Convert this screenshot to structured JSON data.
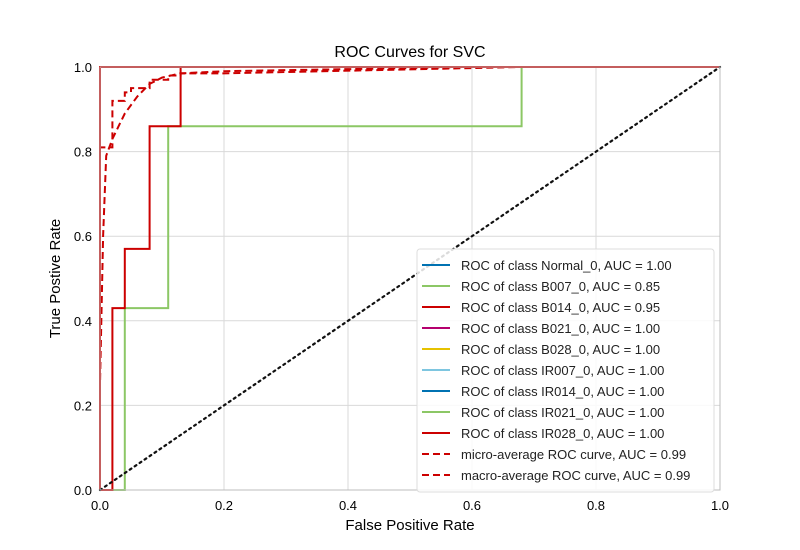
{
  "chart_data": {
    "type": "line",
    "title": "ROC Curves for SVC",
    "xlabel": "False Positive Rate",
    "ylabel": "True Postive Rate",
    "xlim": [
      0.0,
      1.0
    ],
    "ylim": [
      0.0,
      1.0
    ],
    "xticks": [
      "0.0",
      "0.2",
      "0.4",
      "0.6",
      "0.8",
      "1.0"
    ],
    "yticks": [
      "0.0",
      "0.2",
      "0.4",
      "0.6",
      "0.8",
      "1.0"
    ],
    "grid": true,
    "legend_position": "lower-right",
    "series": [
      {
        "name": "ROC of class Normal_0, AUC = 1.00",
        "color": "#0072B2",
        "dash": "solid",
        "x": [
          0.0,
          0.0,
          1.0
        ],
        "y": [
          0.0,
          1.0,
          1.0
        ]
      },
      {
        "name": "ROC of class B007_0, AUC = 0.85",
        "color": "#8cc765",
        "dash": "solid",
        "x": [
          0.0,
          0.04,
          0.04,
          0.11,
          0.11,
          0.68,
          0.68,
          1.0
        ],
        "y": [
          0.0,
          0.0,
          0.43,
          0.43,
          0.86,
          0.86,
          1.0,
          1.0
        ]
      },
      {
        "name": "ROC of class B014_0, AUC = 0.95",
        "color": "#cc0000",
        "dash": "solid",
        "x": [
          0.0,
          0.02,
          0.02,
          0.04,
          0.04,
          0.08,
          0.08,
          0.13,
          0.13,
          1.0
        ],
        "y": [
          0.0,
          0.0,
          0.43,
          0.43,
          0.57,
          0.57,
          0.86,
          0.86,
          1.0,
          1.0
        ]
      },
      {
        "name": "ROC of class B021_0, AUC = 1.00",
        "color": "#b5006e",
        "dash": "solid",
        "x": [
          0.0,
          0.0,
          1.0
        ],
        "y": [
          0.0,
          1.0,
          1.0
        ]
      },
      {
        "name": "ROC of class B028_0, AUC = 1.00",
        "color": "#e6c200",
        "dash": "solid",
        "x": [
          0.0,
          0.0,
          1.0
        ],
        "y": [
          0.0,
          1.0,
          1.0
        ]
      },
      {
        "name": "ROC of class IR007_0, AUC = 1.00",
        "color": "#7ec6e0",
        "dash": "solid",
        "x": [
          0.0,
          0.0,
          1.0
        ],
        "y": [
          0.0,
          1.0,
          1.0
        ]
      },
      {
        "name": "ROC of class IR014_0, AUC = 1.00",
        "color": "#0072B2",
        "dash": "solid",
        "x": [
          0.0,
          0.0,
          1.0
        ],
        "y": [
          0.0,
          1.0,
          1.0
        ]
      },
      {
        "name": "ROC of class IR021_0, AUC = 1.00",
        "color": "#8cc765",
        "dash": "solid",
        "x": [
          0.0,
          0.0,
          1.0
        ],
        "y": [
          0.0,
          1.0,
          1.0
        ]
      },
      {
        "name": "ROC of class IR028_0, AUC = 1.00",
        "color": "#cc0000",
        "dash": "solid",
        "x": [
          0.0,
          0.0,
          1.0
        ],
        "y": [
          0.0,
          1.0,
          1.0
        ]
      },
      {
        "name": "micro-average ROC curve, AUC = 0.99",
        "color": "#cc0000",
        "dash": "dashed",
        "x": [
          0.0,
          0.0,
          0.005,
          0.01,
          0.015,
          0.02,
          0.03,
          0.04,
          0.06,
          0.08,
          0.1,
          0.13,
          0.2,
          0.4,
          0.6,
          0.8,
          1.0
        ],
        "y": [
          0.0,
          0.25,
          0.6,
          0.79,
          0.81,
          0.83,
          0.86,
          0.89,
          0.93,
          0.96,
          0.975,
          0.985,
          0.99,
          0.995,
          1.0,
          1.0,
          1.0
        ]
      },
      {
        "name": "macro-average ROC curve, AUC = 0.99",
        "color": "#cc0000",
        "dash": "dashed",
        "x": [
          0.0,
          0.0,
          0.02,
          0.02,
          0.04,
          0.04,
          0.05,
          0.05,
          0.08,
          0.08,
          0.11,
          0.11,
          0.13,
          0.13,
          0.2,
          0.68,
          1.0
        ],
        "y": [
          0.0,
          0.81,
          0.81,
          0.92,
          0.92,
          0.94,
          0.94,
          0.95,
          0.95,
          0.97,
          0.97,
          0.98,
          0.98,
          0.985,
          0.985,
          1.0,
          1.0
        ]
      }
    ],
    "baseline": {
      "color": "#111111",
      "dash": "dotted",
      "x": [
        0.0,
        1.0
      ],
      "y": [
        0.0,
        1.0
      ]
    }
  }
}
